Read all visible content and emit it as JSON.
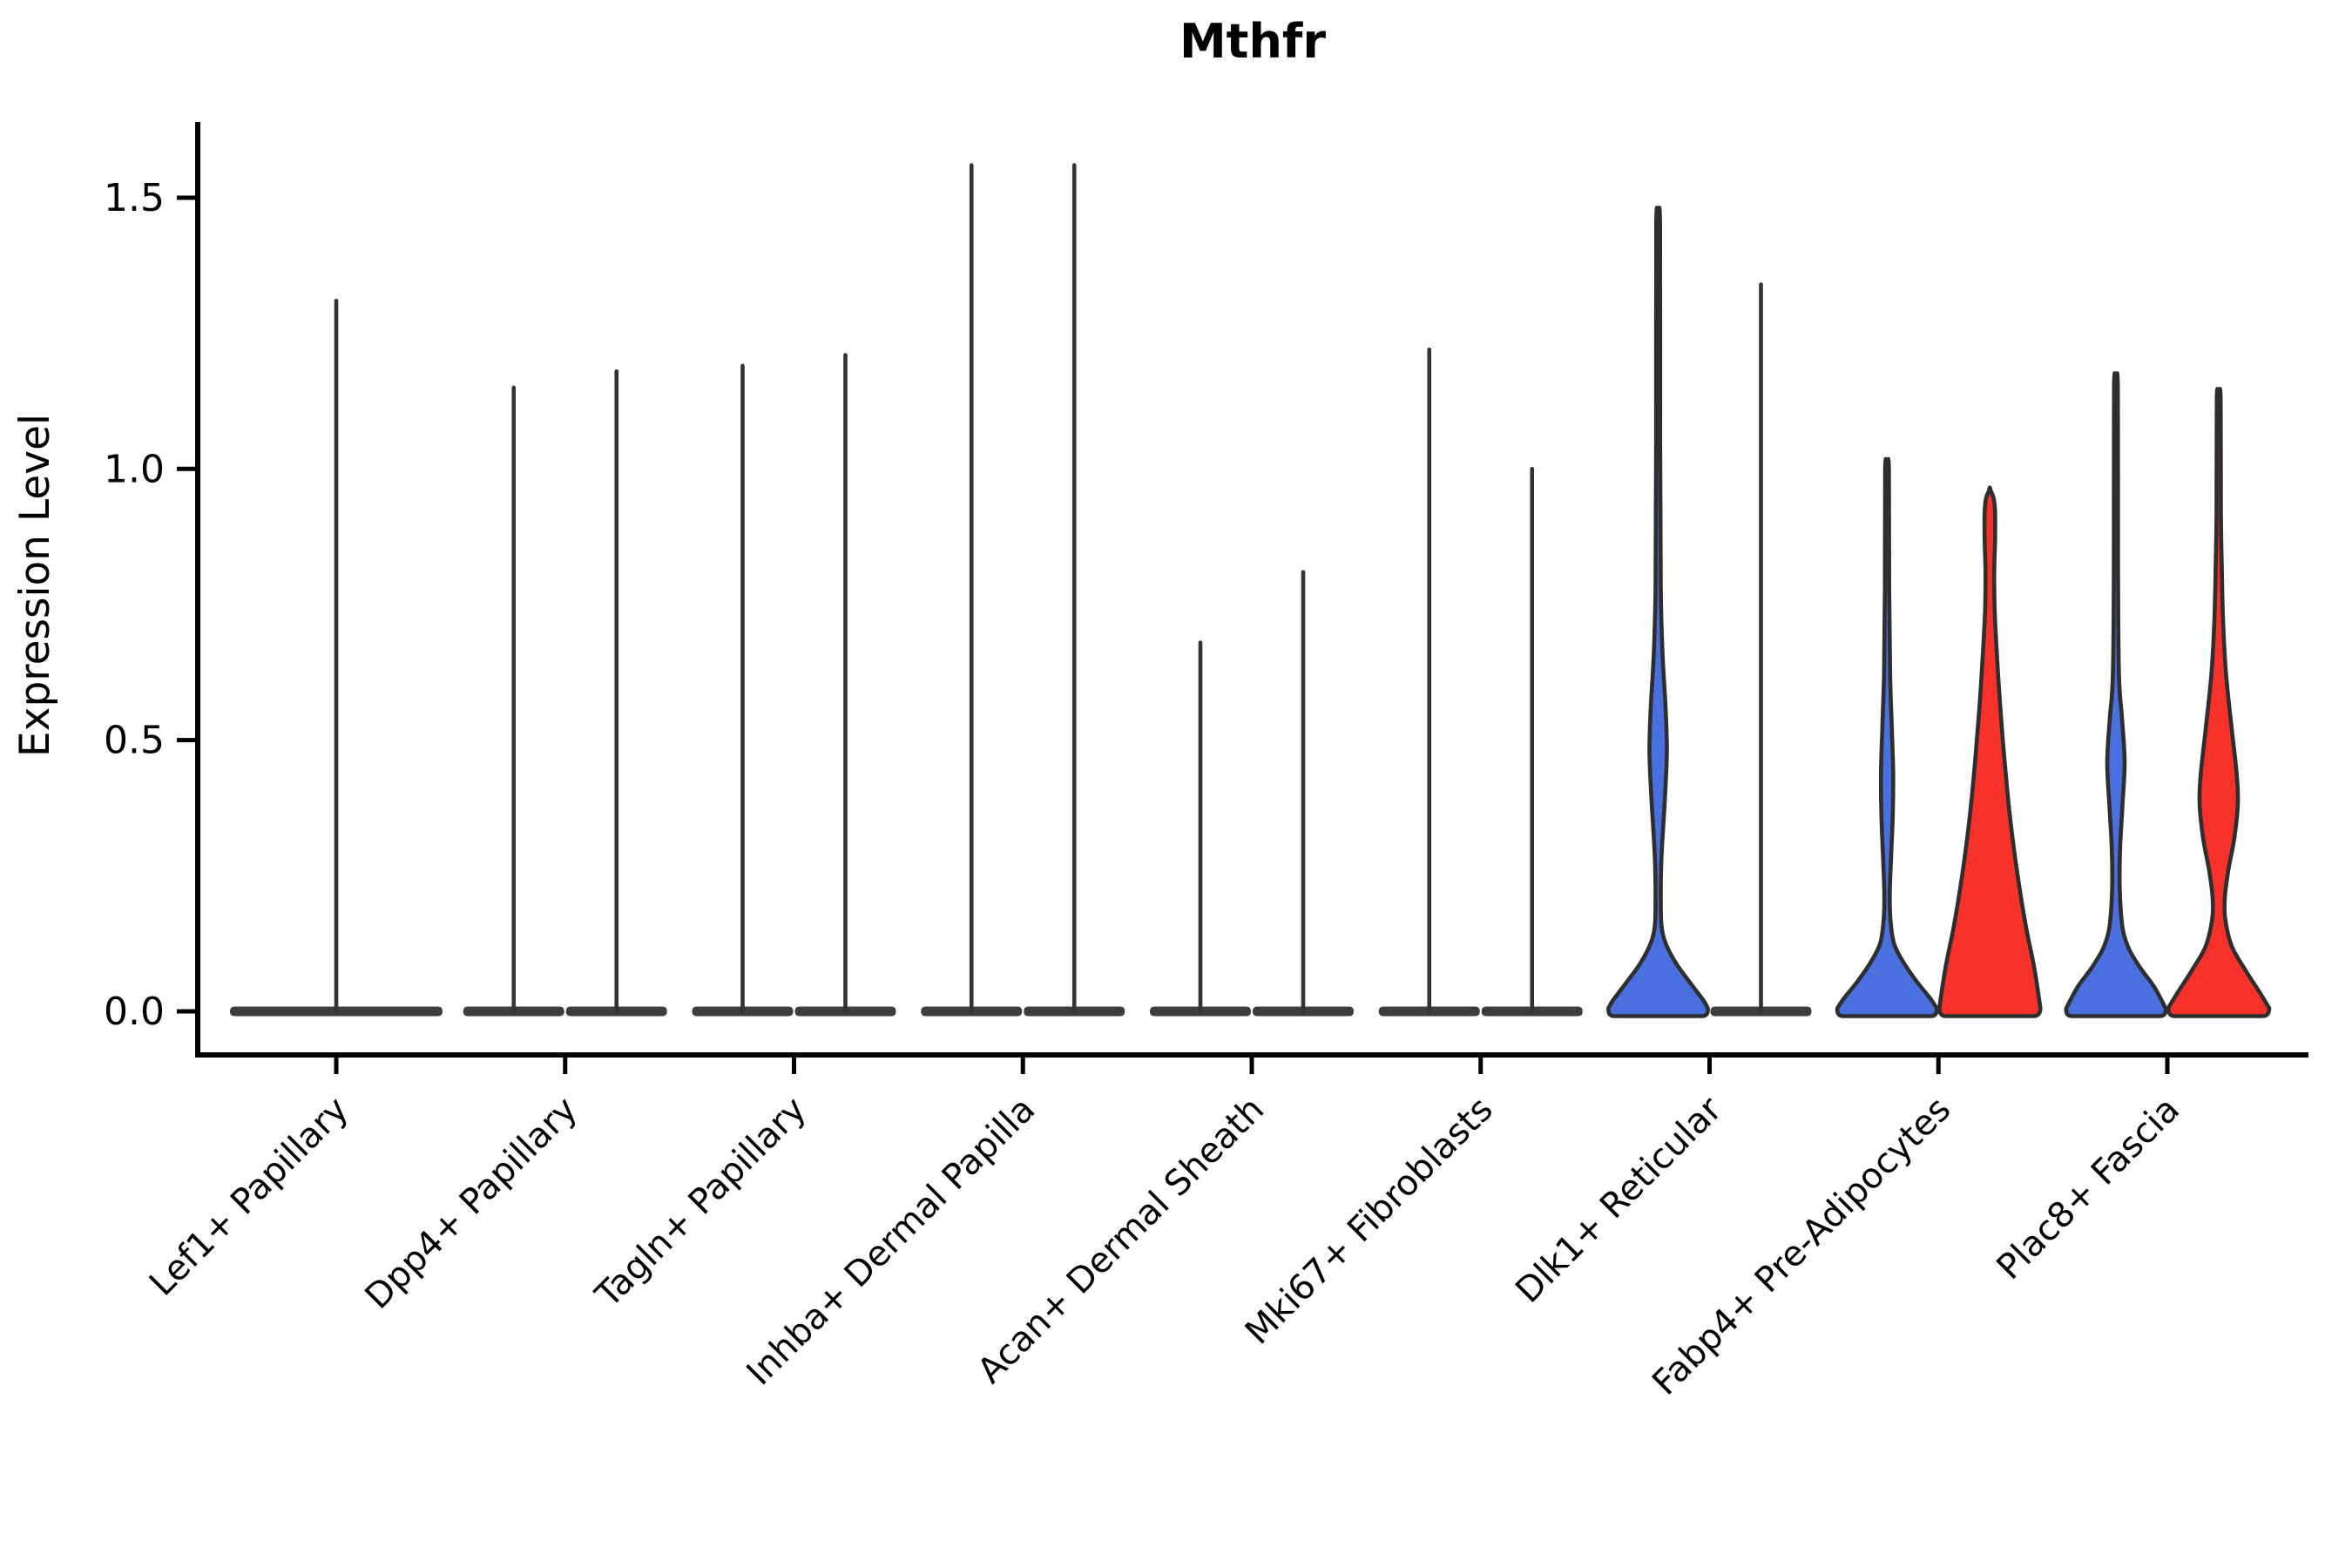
{
  "title": "Mthfr",
  "ylabel": "Expression Level",
  "colors": {
    "blue": "#4a70df",
    "red": "#f8312b",
    "outline": "#2e2e2e",
    "spike": "#333333",
    "base_lens": "#3d3d3d",
    "axis": "#000000"
  },
  "chart_data": {
    "type": "violin",
    "title": "Mthfr",
    "xlabel": "",
    "ylabel": "Expression Level",
    "ylim": [
      -0.08,
      1.64
    ],
    "yticks": [
      0.0,
      0.5,
      1.0,
      1.5
    ],
    "grid": false,
    "legend": "none",
    "categories": [
      "Lef1+ Papillary",
      "Dpp4+ Papillary",
      "Tagln+ Papillary",
      "Inhba+ Dermal Papilla",
      "Acan+ Dermal Sheath",
      "Mki67+ Fibroblasts",
      "Dlk1+ Reticular",
      "Fabp4+ Pre-Adipocytes",
      "Plac8+ Fascia"
    ],
    "violins": [
      {
        "category_index": 0,
        "group": "single",
        "style": "spike",
        "color": "spike",
        "max": 1.31
      },
      {
        "category_index": 1,
        "group": "left",
        "style": "spike",
        "color": "spike",
        "max": 1.15
      },
      {
        "category_index": 1,
        "group": "right",
        "style": "spike",
        "color": "spike",
        "max": 1.18
      },
      {
        "category_index": 2,
        "group": "left",
        "style": "spike",
        "color": "spike",
        "max": 1.19
      },
      {
        "category_index": 2,
        "group": "right",
        "style": "spike",
        "color": "spike",
        "max": 1.21
      },
      {
        "category_index": 3,
        "group": "left",
        "style": "spike",
        "color": "spike",
        "max": 1.56
      },
      {
        "category_index": 3,
        "group": "right",
        "style": "spike",
        "color": "spike",
        "max": 1.56
      },
      {
        "category_index": 4,
        "group": "left",
        "style": "spike",
        "color": "spike",
        "max": 0.68
      },
      {
        "category_index": 4,
        "group": "right",
        "style": "spike",
        "color": "spike",
        "max": 0.81
      },
      {
        "category_index": 5,
        "group": "left",
        "style": "spike",
        "color": "spike",
        "max": 1.22
      },
      {
        "category_index": 5,
        "group": "right",
        "style": "spike",
        "color": "spike",
        "max": 1.0
      },
      {
        "category_index": 6,
        "group": "left",
        "style": "filled",
        "color": "blue",
        "max": 1.45,
        "profile": [
          [
            1.45,
            2.2
          ],
          [
            1.05,
            2.3
          ],
          [
            0.78,
            3.0
          ],
          [
            0.66,
            5.0
          ],
          [
            0.56,
            8.5
          ],
          [
            0.48,
            10.0
          ],
          [
            0.4,
            8.0
          ],
          [
            0.32,
            5.0
          ],
          [
            0.27,
            3.5
          ],
          [
            0.21,
            3.0
          ],
          [
            0.155,
            4.0
          ],
          [
            0.12,
            10.0
          ],
          [
            0.085,
            22.0
          ],
          [
            0.05,
            38.0
          ],
          [
            0.02,
            52.0
          ],
          [
            0.006,
            57.0
          ]
        ]
      },
      {
        "category_index": 6,
        "group": "right",
        "style": "spike",
        "color": "spike",
        "max": 1.34
      },
      {
        "category_index": 7,
        "group": "left",
        "style": "filled",
        "color": "blue",
        "max": 1.0,
        "profile": [
          [
            1.0,
            2.2
          ],
          [
            0.78,
            2.4
          ],
          [
            0.62,
            3.5
          ],
          [
            0.52,
            5.5
          ],
          [
            0.44,
            7.0
          ],
          [
            0.36,
            6.5
          ],
          [
            0.28,
            4.5
          ],
          [
            0.22,
            3.2
          ],
          [
            0.17,
            3.8
          ],
          [
            0.125,
            8.0
          ],
          [
            0.09,
            19.0
          ],
          [
            0.055,
            34.0
          ],
          [
            0.025,
            49.0
          ],
          [
            0.006,
            57.0
          ]
        ]
      },
      {
        "category_index": 7,
        "group": "right",
        "style": "filled",
        "color": "red",
        "max": 0.96,
        "profile": [
          [
            0.96,
            1.0
          ],
          [
            0.945,
            4.5
          ],
          [
            0.92,
            6.0
          ],
          [
            0.87,
            6.0
          ],
          [
            0.81,
            5.0
          ],
          [
            0.74,
            5.5
          ],
          [
            0.66,
            8.0
          ],
          [
            0.56,
            12.0
          ],
          [
            0.46,
            17.0
          ],
          [
            0.36,
            23.0
          ],
          [
            0.26,
            31.0
          ],
          [
            0.16,
            41.0
          ],
          [
            0.08,
            51.0
          ],
          [
            0.006,
            58.0
          ]
        ]
      },
      {
        "category_index": 8,
        "group": "left",
        "style": "filled",
        "color": "blue",
        "max": 1.15,
        "profile": [
          [
            1.15,
            2.2
          ],
          [
            0.82,
            2.4
          ],
          [
            0.62,
            3.5
          ],
          [
            0.54,
            7.0
          ],
          [
            0.46,
            10.0
          ],
          [
            0.38,
            7.5
          ],
          [
            0.31,
            5.0
          ],
          [
            0.25,
            4.2
          ],
          [
            0.2,
            5.0
          ],
          [
            0.15,
            8.0
          ],
          [
            0.115,
            15.0
          ],
          [
            0.08,
            28.0
          ],
          [
            0.045,
            44.0
          ],
          [
            0.006,
            57.0
          ]
        ]
      },
      {
        "category_index": 8,
        "group": "right",
        "style": "filled",
        "color": "red",
        "max": 1.13,
        "profile": [
          [
            1.13,
            2.2
          ],
          [
            0.92,
            2.5
          ],
          [
            0.82,
            3.5
          ],
          [
            0.72,
            5.0
          ],
          [
            0.62,
            8.5
          ],
          [
            0.52,
            15.0
          ],
          [
            0.44,
            20.5
          ],
          [
            0.385,
            22.0
          ],
          [
            0.32,
            18.0
          ],
          [
            0.26,
            11.0
          ],
          [
            0.21,
            7.0
          ],
          [
            0.17,
            7.5
          ],
          [
            0.12,
            15.0
          ],
          [
            0.075,
            31.0
          ],
          [
            0.035,
            47.0
          ],
          [
            0.006,
            58.0
          ]
        ]
      }
    ]
  }
}
